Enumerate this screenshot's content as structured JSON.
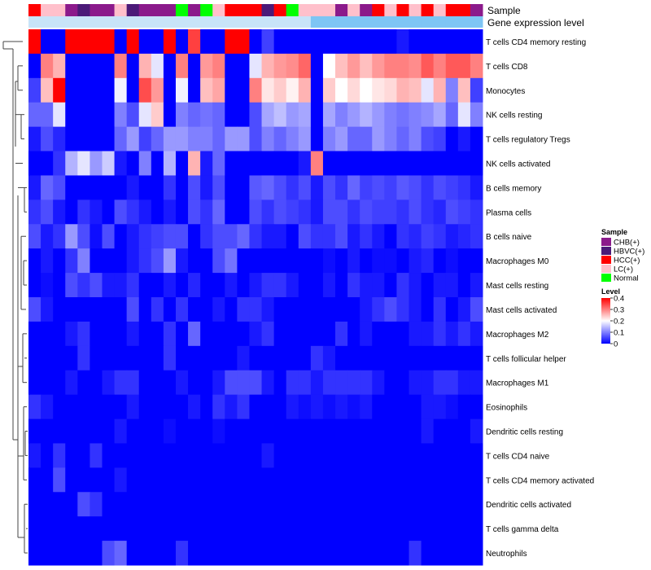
{
  "chart_data": {
    "type": "heatmap",
    "annotation_labels": {
      "sample": "Sample",
      "gene_expression": "Gene expression level"
    },
    "rows": [
      "T cells CD4 memory resting",
      "T cells CD8",
      "Monocytes",
      "NK cells resting",
      "T cells regulatory  Tregs",
      "NK cells activated",
      "B cells memory",
      "Plasma cells",
      "B cells naive",
      "Macrophages M0",
      "Mast cells resting",
      "Mast cells activated",
      "Macrophages M2",
      "T cells follicular helper",
      "Macrophages M1",
      "Eosinophils",
      "Dendritic cells resting",
      "T cells CD4 naive",
      "T cells CD4 memory activated",
      "Dendritic cells activated",
      "T cells gamma delta",
      "Neutrophils"
    ],
    "sample_groups": [
      "HCC(+)",
      "LC(+)",
      "LC(+)",
      "CHB(+)",
      "HBVC(+)",
      "CHB(+)",
      "CHB(+)",
      "LC(+)",
      "HBVC(+)",
      "CHB(+)",
      "CHB(+)",
      "CHB(+)",
      "Normal",
      "CHB(+)",
      "Normal",
      "LC(+)",
      "HCC(+)",
      "HCC(+)",
      "HCC(+)",
      "HBVC(+)",
      "HCC(+)",
      "Normal",
      "LC(+)",
      "LC(+)",
      "LC(+)",
      "CHB(+)",
      "LC(+)",
      "CHB(+)",
      "HCC(+)",
      "LC(+)",
      "HCC(+)",
      "LC(+)",
      "HCC(+)",
      "LC(+)",
      "HCC(+)",
      "HCC(+)",
      "CHB(+)"
    ],
    "gene_expression_groups": [
      "low",
      "low",
      "low",
      "low",
      "low",
      "low",
      "low",
      "low",
      "low",
      "low",
      "low",
      "low",
      "low",
      "low",
      "low",
      "low",
      "low",
      "low",
      "low",
      "low",
      "low",
      "low",
      "low",
      "high",
      "high",
      "high",
      "high",
      "high",
      "high",
      "high",
      "high",
      "high",
      "high",
      "high",
      "high",
      "high",
      "high"
    ],
    "values": [
      [
        0.4,
        0.0,
        0.0,
        0.4,
        0.4,
        0.4,
        0.4,
        0.0,
        0.4,
        0.0,
        0.0,
        0.4,
        0.0,
        0.35,
        0.0,
        0.0,
        0.4,
        0.4,
        0.0,
        0.05,
        0.0,
        0.0,
        0.0,
        0.0,
        0.0,
        0.0,
        0.0,
        0.0,
        0.0,
        0.0,
        0.02,
        0.0,
        0.0,
        0.0,
        0.0,
        0.0,
        0.0
      ],
      [
        0.0,
        0.3,
        0.26,
        0.0,
        0.0,
        0.0,
        0.0,
        0.3,
        0.0,
        0.26,
        0.18,
        0.0,
        0.3,
        0.0,
        0.28,
        0.3,
        0.0,
        0.0,
        0.18,
        0.26,
        0.28,
        0.29,
        0.32,
        0.0,
        0.2,
        0.25,
        0.28,
        0.25,
        0.28,
        0.3,
        0.3,
        0.29,
        0.33,
        0.3,
        0.33,
        0.33,
        0.3
      ],
      [
        0.05,
        0.25,
        0.4,
        0.0,
        0.0,
        0.0,
        0.0,
        0.19,
        0.0,
        0.34,
        0.28,
        0.0,
        0.19,
        0.0,
        0.25,
        0.27,
        0.0,
        0.0,
        0.3,
        0.22,
        0.24,
        0.21,
        0.26,
        0.0,
        0.24,
        0.2,
        0.23,
        0.2,
        0.22,
        0.23,
        0.26,
        0.25,
        0.18,
        0.26,
        0.1,
        0.25,
        0.05
      ],
      [
        0.08,
        0.08,
        0.18,
        0.0,
        0.0,
        0.0,
        0.0,
        0.1,
        0.06,
        0.18,
        0.24,
        0.0,
        0.1,
        0.08,
        0.09,
        0.08,
        0.0,
        0.0,
        0.06,
        0.13,
        0.15,
        0.12,
        0.13,
        0.0,
        0.13,
        0.1,
        0.12,
        0.14,
        0.12,
        0.1,
        0.09,
        0.1,
        0.11,
        0.13,
        0.08,
        0.18,
        0.1
      ],
      [
        0.02,
        0.06,
        0.03,
        0.0,
        0.0,
        0.0,
        0.0,
        0.08,
        0.12,
        0.05,
        0.08,
        0.12,
        0.12,
        0.1,
        0.1,
        0.08,
        0.12,
        0.12,
        0.06,
        0.1,
        0.08,
        0.1,
        0.12,
        0.0,
        0.1,
        0.12,
        0.08,
        0.08,
        0.12,
        0.1,
        0.08,
        0.1,
        0.06,
        0.05,
        0.0,
        0.02,
        0.0
      ],
      [
        0.0,
        0.0,
        0.04,
        0.14,
        0.18,
        0.12,
        0.16,
        0.02,
        0.0,
        0.1,
        0.0,
        0.14,
        0.0,
        0.26,
        0.02,
        0.08,
        0.0,
        0.0,
        0.0,
        0.0,
        0.0,
        0.0,
        0.02,
        0.3,
        0.0,
        0.0,
        0.0,
        0.0,
        0.0,
        0.0,
        0.0,
        0.0,
        0.0,
        0.0,
        0.0,
        0.0,
        0.0
      ],
      [
        0.02,
        0.08,
        0.06,
        0.0,
        0.0,
        0.0,
        0.0,
        0.0,
        0.02,
        0.0,
        0.0,
        0.04,
        0.0,
        0.06,
        0.02,
        0.06,
        0.0,
        0.0,
        0.07,
        0.08,
        0.06,
        0.04,
        0.06,
        0.02,
        0.06,
        0.04,
        0.08,
        0.05,
        0.06,
        0.05,
        0.07,
        0.06,
        0.04,
        0.06,
        0.05,
        0.04,
        0.02
      ],
      [
        0.04,
        0.06,
        0.02,
        0.0,
        0.04,
        0.02,
        0.0,
        0.06,
        0.04,
        0.02,
        0.0,
        0.02,
        0.0,
        0.06,
        0.04,
        0.08,
        0.0,
        0.0,
        0.06,
        0.04,
        0.06,
        0.05,
        0.04,
        0.02,
        0.06,
        0.06,
        0.04,
        0.06,
        0.05,
        0.05,
        0.04,
        0.06,
        0.04,
        0.03,
        0.06,
        0.05,
        0.04
      ],
      [
        0.06,
        0.02,
        0.04,
        0.12,
        0.06,
        0.01,
        0.06,
        0.0,
        0.02,
        0.04,
        0.05,
        0.06,
        0.06,
        0.0,
        0.04,
        0.06,
        0.06,
        0.08,
        0.04,
        0.02,
        0.02,
        0.0,
        0.06,
        0.04,
        0.04,
        0.06,
        0.02,
        0.04,
        0.02,
        0.0,
        0.04,
        0.03,
        0.05,
        0.04,
        0.02,
        0.03,
        0.04
      ],
      [
        0.0,
        0.02,
        0.0,
        0.04,
        0.1,
        0.0,
        0.0,
        0.0,
        0.02,
        0.04,
        0.06,
        0.12,
        0.02,
        0.0,
        0.0,
        0.06,
        0.09,
        0.0,
        0.0,
        0.0,
        0.0,
        0.0,
        0.0,
        0.0,
        0.01,
        0.0,
        0.02,
        0.0,
        0.01,
        0.01,
        0.0,
        0.02,
        0.03,
        0.0,
        0.01,
        0.0,
        0.0
      ],
      [
        0.0,
        0.01,
        0.0,
        0.06,
        0.04,
        0.06,
        0.02,
        0.02,
        0.04,
        0.0,
        0.0,
        0.02,
        0.0,
        0.03,
        0.0,
        0.0,
        0.02,
        0.0,
        0.02,
        0.04,
        0.04,
        0.02,
        0.0,
        0.0,
        0.02,
        0.0,
        0.04,
        0.02,
        0.02,
        0.0,
        0.04,
        0.02,
        0.0,
        0.02,
        0.02,
        0.0,
        0.02
      ],
      [
        0.06,
        0.02,
        0.0,
        0.0,
        0.0,
        0.0,
        0.0,
        0.0,
        0.06,
        0.0,
        0.04,
        0.0,
        0.04,
        0.0,
        0.0,
        0.02,
        0.0,
        0.04,
        0.04,
        0.02,
        0.0,
        0.0,
        0.0,
        0.0,
        0.0,
        0.0,
        0.0,
        0.02,
        0.04,
        0.06,
        0.04,
        0.02,
        0.0,
        0.04,
        0.0,
        0.02,
        0.06
      ],
      [
        0.0,
        0.0,
        0.0,
        0.02,
        0.04,
        0.0,
        0.0,
        0.0,
        0.02,
        0.0,
        0.0,
        0.04,
        0.0,
        0.08,
        0.0,
        0.0,
        0.0,
        0.0,
        0.02,
        0.04,
        0.0,
        0.0,
        0.0,
        0.0,
        0.0,
        0.04,
        0.0,
        0.02,
        0.0,
        0.0,
        0.0,
        0.02,
        0.02,
        0.04,
        0.02,
        0.04,
        0.02
      ],
      [
        0.0,
        0.0,
        0.0,
        0.0,
        0.04,
        0.0,
        0.0,
        0.0,
        0.0,
        0.0,
        0.0,
        0.04,
        0.0,
        0.0,
        0.0,
        0.0,
        0.0,
        0.02,
        0.0,
        0.0,
        0.0,
        0.0,
        0.0,
        0.04,
        0.02,
        0.0,
        0.0,
        0.0,
        0.0,
        0.0,
        0.0,
        0.0,
        0.0,
        0.0,
        0.0,
        0.0,
        0.0
      ],
      [
        0.0,
        0.0,
        0.0,
        0.02,
        0.0,
        0.0,
        0.02,
        0.04,
        0.04,
        0.0,
        0.0,
        0.0,
        0.02,
        0.0,
        0.0,
        0.02,
        0.06,
        0.06,
        0.06,
        0.02,
        0.0,
        0.04,
        0.04,
        0.02,
        0.04,
        0.04,
        0.04,
        0.04,
        0.02,
        0.0,
        0.0,
        0.02,
        0.02,
        0.04,
        0.04,
        0.02,
        0.02
      ],
      [
        0.04,
        0.02,
        0.0,
        0.0,
        0.0,
        0.0,
        0.0,
        0.0,
        0.02,
        0.0,
        0.0,
        0.0,
        0.0,
        0.02,
        0.0,
        0.04,
        0.02,
        0.04,
        0.0,
        0.0,
        0.0,
        0.02,
        0.01,
        0.02,
        0.01,
        0.02,
        0.01,
        0.02,
        0.0,
        0.0,
        0.0,
        0.0,
        0.02,
        0.02,
        0.01,
        0.0,
        0.0
      ],
      [
        0.0,
        0.0,
        0.0,
        0.0,
        0.0,
        0.0,
        0.0,
        0.02,
        0.0,
        0.0,
        0.0,
        0.01,
        0.0,
        0.0,
        0.0,
        0.01,
        0.0,
        0.0,
        0.0,
        0.0,
        0.0,
        0.0,
        0.0,
        0.0,
        0.0,
        0.0,
        0.0,
        0.0,
        0.0,
        0.0,
        0.0,
        0.0,
        0.02,
        0.0,
        0.0,
        0.0,
        0.02
      ],
      [
        0.02,
        0.0,
        0.04,
        0.0,
        0.0,
        0.04,
        0.0,
        0.0,
        0.0,
        0.0,
        0.0,
        0.0,
        0.0,
        0.0,
        0.0,
        0.0,
        0.0,
        0.0,
        0.0,
        0.02,
        0.0,
        0.0,
        0.0,
        0.0,
        0.0,
        0.0,
        0.0,
        0.0,
        0.0,
        0.0,
        0.0,
        0.0,
        0.0,
        0.0,
        0.0,
        0.0,
        0.0
      ],
      [
        0.0,
        0.0,
        0.06,
        0.0,
        0.0,
        0.0,
        0.0,
        0.02,
        0.0,
        0.0,
        0.0,
        0.0,
        0.0,
        0.0,
        0.0,
        0.0,
        0.0,
        0.0,
        0.0,
        0.0,
        0.0,
        0.0,
        0.0,
        0.0,
        0.0,
        0.0,
        0.0,
        0.0,
        0.0,
        0.0,
        0.0,
        0.0,
        0.0,
        0.0,
        0.0,
        0.0,
        0.0
      ],
      [
        0.0,
        0.0,
        0.0,
        0.0,
        0.06,
        0.04,
        0.0,
        0.0,
        0.0,
        0.0,
        0.0,
        0.0,
        0.0,
        0.0,
        0.0,
        0.0,
        0.0,
        0.0,
        0.0,
        0.0,
        0.0,
        0.0,
        0.0,
        0.0,
        0.0,
        0.0,
        0.0,
        0.0,
        0.0,
        0.0,
        0.0,
        0.0,
        0.0,
        0.0,
        0.0,
        0.0,
        0.0
      ],
      [
        0.0,
        0.0,
        0.0,
        0.0,
        0.0,
        0.0,
        0.0,
        0.0,
        0.0,
        0.0,
        0.0,
        0.0,
        0.0,
        0.0,
        0.0,
        0.0,
        0.0,
        0.0,
        0.0,
        0.0,
        0.0,
        0.0,
        0.0,
        0.0,
        0.0,
        0.0,
        0.0,
        0.0,
        0.0,
        0.0,
        0.0,
        0.0,
        0.0,
        0.0,
        0.0,
        0.0,
        0.0
      ],
      [
        0.0,
        0.0,
        0.0,
        0.0,
        0.0,
        0.0,
        0.06,
        0.08,
        0.0,
        0.0,
        0.0,
        0.0,
        0.04,
        0.0,
        0.0,
        0.0,
        0.0,
        0.0,
        0.0,
        0.0,
        0.0,
        0.0,
        0.0,
        0.0,
        0.0,
        0.0,
        0.0,
        0.0,
        0.0,
        0.0,
        0.0,
        0.04,
        0.0,
        0.0,
        0.0,
        0.0,
        0.0
      ]
    ],
    "legend_sample": {
      "title": "Sample",
      "entries": [
        {
          "label": "CHB(+)",
          "color": "#8b1a8b"
        },
        {
          "label": "HBVC(+)",
          "color": "#4b1a78"
        },
        {
          "label": "HCC(+)",
          "color": "#ff0000"
        },
        {
          "label": "LC(+)",
          "color": "#ffc0cb"
        },
        {
          "label": "Normal",
          "color": "#00ff00"
        }
      ]
    },
    "legend_level": {
      "title": "Level",
      "ticks": [
        0,
        0.1,
        0.2,
        0.3,
        0.4
      ],
      "tick_labels": [
        "0",
        "0.1",
        "0.2",
        "0.3",
        "0.4"
      ]
    },
    "value_range": [
      0,
      0.4
    ],
    "color_scale": [
      "#0000ff",
      "#ffffff",
      "#ff0000"
    ],
    "gene_expression_colors": {
      "low": "#c8e4f8",
      "high": "#7ec5f4"
    },
    "dendrogram": "rows"
  }
}
